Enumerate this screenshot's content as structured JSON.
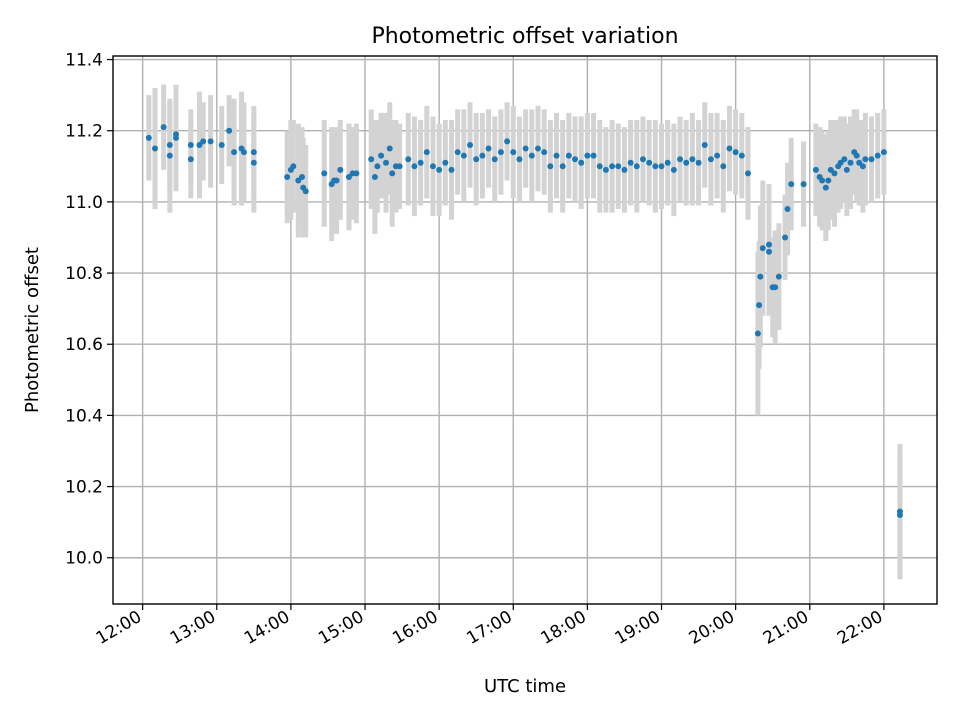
{
  "chart_data": {
    "type": "scatter",
    "title": "Photometric offset variation",
    "xlabel": "UTC time",
    "ylabel": "Photometric offset",
    "x_ticks": [
      "12:00",
      "13:00",
      "14:00",
      "15:00",
      "16:00",
      "17:00",
      "18:00",
      "19:00",
      "20:00",
      "21:00",
      "22:00"
    ],
    "y_ticks": [
      "10.0",
      "10.2",
      "10.4",
      "10.6",
      "10.8",
      "11.0",
      "11.2",
      "11.4"
    ],
    "xlim": [
      "11:36",
      "22:43"
    ],
    "ylim": [
      9.87,
      11.41
    ],
    "grid": true,
    "colors": {
      "points": "#1f77b4",
      "errorbars": "#d3d3d3"
    },
    "series": [
      {
        "points": [
          {
            "t": "12:05",
            "y": 11.18,
            "err": 0.12
          },
          {
            "t": "12:10",
            "y": 11.15,
            "err": 0.17
          },
          {
            "t": "12:17",
            "y": 11.21,
            "err": 0.12
          },
          {
            "t": "12:22",
            "y": 11.13,
            "err": 0.16
          },
          {
            "t": "12:22",
            "y": 11.16,
            "err": 0.12
          },
          {
            "t": "12:27",
            "y": 11.19,
            "err": 0.14
          },
          {
            "t": "12:27",
            "y": 11.18,
            "err": 0.15
          },
          {
            "t": "12:39",
            "y": 11.12,
            "err": 0.11
          },
          {
            "t": "12:39",
            "y": 11.16,
            "err": 0.1
          },
          {
            "t": "12:46",
            "y": 11.16,
            "err": 0.15
          },
          {
            "t": "12:49",
            "y": 11.17,
            "err": 0.11
          },
          {
            "t": "12:55",
            "y": 11.17,
            "err": 0.13
          },
          {
            "t": "13:04",
            "y": 11.16,
            "err": 0.11
          },
          {
            "t": "13:10",
            "y": 11.2,
            "err": 0.1
          },
          {
            "t": "13:14",
            "y": 11.14,
            "err": 0.15
          },
          {
            "t": "13:20",
            "y": 11.15,
            "err": 0.16
          },
          {
            "t": "13:22",
            "y": 11.14,
            "err": 0.14
          },
          {
            "t": "13:30",
            "y": 11.14,
            "err": 0.13
          },
          {
            "t": "13:30",
            "y": 11.11,
            "err": 0.14
          },
          {
            "t": "13:57",
            "y": 11.07,
            "err": 0.13
          },
          {
            "t": "14:00",
            "y": 11.09,
            "err": 0.14
          },
          {
            "t": "14:02",
            "y": 11.1,
            "err": 0.13
          },
          {
            "t": "14:06",
            "y": 11.06,
            "err": 0.16
          },
          {
            "t": "14:09",
            "y": 11.07,
            "err": 0.14
          },
          {
            "t": "14:10",
            "y": 11.04,
            "err": 0.14
          },
          {
            "t": "14:12",
            "y": 11.03,
            "err": 0.13
          },
          {
            "t": "14:27",
            "y": 11.08,
            "err": 0.15
          },
          {
            "t": "14:33",
            "y": 11.05,
            "err": 0.16
          },
          {
            "t": "14:35",
            "y": 11.06,
            "err": 0.14
          },
          {
            "t": "14:37",
            "y": 11.06,
            "err": 0.15
          },
          {
            "t": "14:40",
            "y": 11.09,
            "err": 0.14
          },
          {
            "t": "14:47",
            "y": 11.07,
            "err": 0.15
          },
          {
            "t": "14:50",
            "y": 11.08,
            "err": 0.13
          },
          {
            "t": "14:53",
            "y": 11.08,
            "err": 0.14
          },
          {
            "t": "15:05",
            "y": 11.12,
            "err": 0.14
          },
          {
            "t": "15:08",
            "y": 11.07,
            "err": 0.16
          },
          {
            "t": "15:10",
            "y": 11.1,
            "err": 0.13
          },
          {
            "t": "15:13",
            "y": 11.13,
            "err": 0.12
          },
          {
            "t": "15:17",
            "y": 11.11,
            "err": 0.14
          },
          {
            "t": "15:20",
            "y": 11.15,
            "err": 0.13
          },
          {
            "t": "15:22",
            "y": 11.08,
            "err": 0.15
          },
          {
            "t": "15:25",
            "y": 11.1,
            "err": 0.13
          },
          {
            "t": "15:28",
            "y": 11.1,
            "err": 0.12
          },
          {
            "t": "15:35",
            "y": 11.12,
            "err": 0.13
          },
          {
            "t": "15:40",
            "y": 11.1,
            "err": 0.14
          },
          {
            "t": "15:45",
            "y": 11.11,
            "err": 0.12
          },
          {
            "t": "15:50",
            "y": 11.14,
            "err": 0.13
          },
          {
            "t": "15:55",
            "y": 11.1,
            "err": 0.14
          },
          {
            "t": "16:00",
            "y": 11.09,
            "err": 0.13
          },
          {
            "t": "16:05",
            "y": 11.11,
            "err": 0.12
          },
          {
            "t": "16:10",
            "y": 11.09,
            "err": 0.14
          },
          {
            "t": "16:15",
            "y": 11.14,
            "err": 0.12
          },
          {
            "t": "16:20",
            "y": 11.13,
            "err": 0.13
          },
          {
            "t": "16:25",
            "y": 11.16,
            "err": 0.12
          },
          {
            "t": "16:30",
            "y": 11.12,
            "err": 0.13
          },
          {
            "t": "16:35",
            "y": 11.13,
            "err": 0.12
          },
          {
            "t": "16:40",
            "y": 11.15,
            "err": 0.11
          },
          {
            "t": "16:45",
            "y": 11.12,
            "err": 0.12
          },
          {
            "t": "16:50",
            "y": 11.14,
            "err": 0.12
          },
          {
            "t": "16:55",
            "y": 11.17,
            "err": 0.11
          },
          {
            "t": "17:00",
            "y": 11.14,
            "err": 0.13
          },
          {
            "t": "17:05",
            "y": 11.12,
            "err": 0.12
          },
          {
            "t": "17:10",
            "y": 11.15,
            "err": 0.11
          },
          {
            "t": "17:15",
            "y": 11.13,
            "err": 0.13
          },
          {
            "t": "17:20",
            "y": 11.15,
            "err": 0.12
          },
          {
            "t": "17:25",
            "y": 11.14,
            "err": 0.12
          },
          {
            "t": "17:30",
            "y": 11.1,
            "err": 0.13
          },
          {
            "t": "17:35",
            "y": 11.13,
            "err": 0.12
          },
          {
            "t": "17:40",
            "y": 11.1,
            "err": 0.13
          },
          {
            "t": "17:45",
            "y": 11.13,
            "err": 0.12
          },
          {
            "t": "17:50",
            "y": 11.12,
            "err": 0.12
          },
          {
            "t": "17:55",
            "y": 11.11,
            "err": 0.13
          },
          {
            "t": "18:00",
            "y": 11.13,
            "err": 0.12
          },
          {
            "t": "18:05",
            "y": 11.13,
            "err": 0.12
          },
          {
            "t": "18:10",
            "y": 11.1,
            "err": 0.13
          },
          {
            "t": "18:15",
            "y": 11.09,
            "err": 0.12
          },
          {
            "t": "18:20",
            "y": 11.1,
            "err": 0.13
          },
          {
            "t": "18:25",
            "y": 11.1,
            "err": 0.12
          },
          {
            "t": "18:30",
            "y": 11.09,
            "err": 0.12
          },
          {
            "t": "18:35",
            "y": 11.11,
            "err": 0.12
          },
          {
            "t": "18:40",
            "y": 11.1,
            "err": 0.13
          },
          {
            "t": "18:45",
            "y": 11.12,
            "err": 0.12
          },
          {
            "t": "18:50",
            "y": 11.11,
            "err": 0.12
          },
          {
            "t": "18:55",
            "y": 11.1,
            "err": 0.13
          },
          {
            "t": "19:00",
            "y": 11.1,
            "err": 0.12
          },
          {
            "t": "19:05",
            "y": 11.11,
            "err": 0.12
          },
          {
            "t": "19:10",
            "y": 11.09,
            "err": 0.13
          },
          {
            "t": "19:15",
            "y": 11.12,
            "err": 0.12
          },
          {
            "t": "19:20",
            "y": 11.11,
            "err": 0.12
          },
          {
            "t": "19:25",
            "y": 11.12,
            "err": 0.13
          },
          {
            "t": "19:30",
            "y": 11.11,
            "err": 0.12
          },
          {
            "t": "19:35",
            "y": 11.16,
            "err": 0.12
          },
          {
            "t": "19:40",
            "y": 11.12,
            "err": 0.13
          },
          {
            "t": "19:45",
            "y": 11.13,
            "err": 0.12
          },
          {
            "t": "19:50",
            "y": 11.1,
            "err": 0.13
          },
          {
            "t": "19:55",
            "y": 11.15,
            "err": 0.12
          },
          {
            "t": "20:00",
            "y": 11.14,
            "err": 0.12
          },
          {
            "t": "20:05",
            "y": 11.13,
            "err": 0.12
          },
          {
            "t": "20:10",
            "y": 11.08,
            "err": 0.13
          },
          {
            "t": "20:18",
            "y": 10.63,
            "err": 0.23
          },
          {
            "t": "20:19",
            "y": 10.71,
            "err": 0.18
          },
          {
            "t": "20:20",
            "y": 10.79,
            "err": 0.2
          },
          {
            "t": "20:22",
            "y": 10.87,
            "err": 0.19
          },
          {
            "t": "20:27",
            "y": 10.86,
            "err": 0.18
          },
          {
            "t": "20:27",
            "y": 10.88,
            "err": 0.17
          },
          {
            "t": "20:30",
            "y": 10.76,
            "err": 0.14
          },
          {
            "t": "20:32",
            "y": 10.76,
            "err": 0.16
          },
          {
            "t": "20:35",
            "y": 10.79,
            "err": 0.15
          },
          {
            "t": "20:40",
            "y": 10.9,
            "err": 0.12
          },
          {
            "t": "20:42",
            "y": 10.98,
            "err": 0.13
          },
          {
            "t": "20:45",
            "y": 11.05,
            "err": 0.13
          },
          {
            "t": "20:55",
            "y": 11.05,
            "err": 0.12
          },
          {
            "t": "21:05",
            "y": 11.09,
            "err": 0.13
          },
          {
            "t": "21:08",
            "y": 11.07,
            "err": 0.14
          },
          {
            "t": "21:10",
            "y": 11.06,
            "err": 0.14
          },
          {
            "t": "21:13",
            "y": 11.04,
            "err": 0.15
          },
          {
            "t": "21:15",
            "y": 11.06,
            "err": 0.14
          },
          {
            "t": "21:17",
            "y": 11.09,
            "err": 0.14
          },
          {
            "t": "21:20",
            "y": 11.08,
            "err": 0.15
          },
          {
            "t": "21:23",
            "y": 11.1,
            "err": 0.13
          },
          {
            "t": "21:25",
            "y": 11.11,
            "err": 0.13
          },
          {
            "t": "21:28",
            "y": 11.12,
            "err": 0.12
          },
          {
            "t": "21:30",
            "y": 11.09,
            "err": 0.13
          },
          {
            "t": "21:33",
            "y": 11.11,
            "err": 0.13
          },
          {
            "t": "21:36",
            "y": 11.14,
            "err": 0.12
          },
          {
            "t": "21:38",
            "y": 11.13,
            "err": 0.13
          },
          {
            "t": "21:40",
            "y": 11.11,
            "err": 0.12
          },
          {
            "t": "21:43",
            "y": 11.1,
            "err": 0.13
          },
          {
            "t": "21:45",
            "y": 11.12,
            "err": 0.13
          },
          {
            "t": "21:50",
            "y": 11.12,
            "err": 0.12
          },
          {
            "t": "21:55",
            "y": 11.13,
            "err": 0.12
          },
          {
            "t": "22:00",
            "y": 11.14,
            "err": 0.12
          },
          {
            "t": "22:13",
            "y": 10.13,
            "err": 0.19
          },
          {
            "t": "22:13",
            "y": 10.12,
            "err": 0.18
          }
        ]
      }
    ]
  }
}
